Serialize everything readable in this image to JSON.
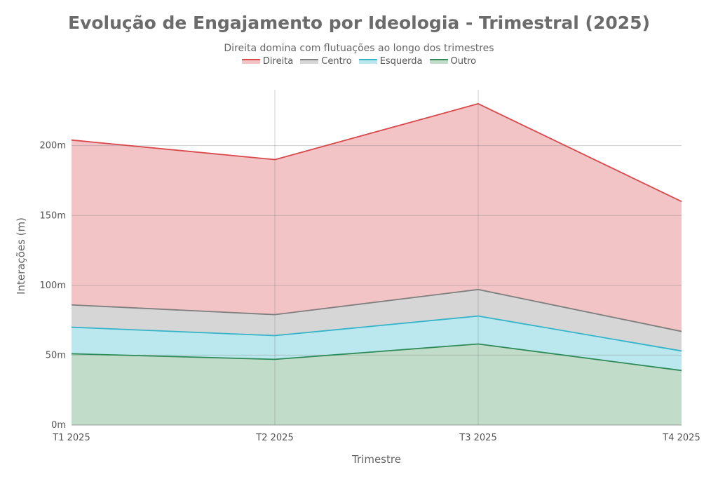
{
  "chart_data": {
    "type": "area",
    "title": "Evolução de Engajamento por Ideologia - Trimestral (2025)",
    "subtitle": "Direita domina com flutuações ao longo dos trimestres",
    "xlabel": "Trimestre",
    "ylabel": "Interações (m)",
    "categories": [
      "T1 2025",
      "T2 2025",
      "T3 2025",
      "T4 2025"
    ],
    "stacked": true,
    "ylim": [
      0,
      240
    ],
    "yticks": [
      0,
      50,
      100,
      150,
      200
    ],
    "ytick_labels": [
      "0m",
      "50m",
      "100m",
      "150m",
      "200m"
    ],
    "grid": true,
    "legend_position": "top-center",
    "series": [
      {
        "name": "Outro",
        "values": [
          51,
          47,
          58,
          39
        ],
        "color": "#2e8b57",
        "fill": "#c2dcca"
      },
      {
        "name": "Esquerda",
        "values": [
          19,
          17,
          20,
          14
        ],
        "color": "#34b3c9",
        "fill": "#bae8ee"
      },
      {
        "name": "Centro",
        "values": [
          16,
          15,
          19,
          14
        ],
        "color": "#7f7f7f",
        "fill": "#d6d6d6"
      },
      {
        "name": "Direita",
        "values": [
          118,
          111,
          133,
          93
        ],
        "color": "#d9494c",
        "fill": "#f2c4c5"
      }
    ],
    "legend_order": [
      "Direita",
      "Centro",
      "Esquerda",
      "Outro"
    ]
  }
}
